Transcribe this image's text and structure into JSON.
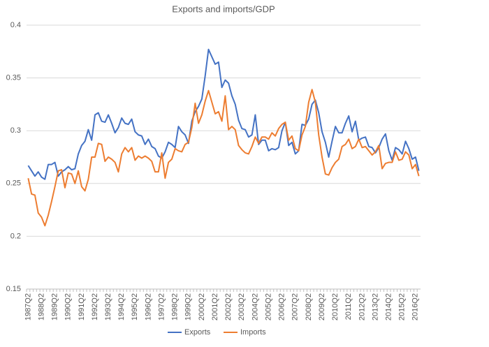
{
  "chart_data": {
    "type": "line",
    "title": "Exports and imports/GDP",
    "categories": [
      "1987Q2",
      null,
      null,
      null,
      "1988Q2",
      null,
      null,
      null,
      "1989Q2",
      null,
      null,
      null,
      "1990Q2",
      null,
      null,
      null,
      "1991Q2",
      null,
      null,
      null,
      "1992Q2",
      null,
      null,
      null,
      "1993Q2",
      null,
      null,
      null,
      "1994Q2",
      null,
      null,
      null,
      "1995Q2",
      null,
      null,
      null,
      "1996Q2",
      null,
      null,
      null,
      "1997Q2",
      null,
      null,
      null,
      "1998Q2",
      null,
      null,
      null,
      "1999Q2",
      null,
      null,
      null,
      "2000Q2",
      null,
      null,
      null,
      "2001Q2",
      null,
      null,
      null,
      "2002Q2",
      null,
      null,
      null,
      "2003Q2",
      null,
      null,
      null,
      "2004Q2",
      null,
      null,
      null,
      "2005Q2",
      null,
      null,
      null,
      "2006Q2",
      null,
      null,
      null,
      "2007Q2",
      null,
      null,
      null,
      "2008Q2",
      null,
      null,
      null,
      "2009Q2",
      null,
      null,
      null,
      "2010Q2",
      null,
      null,
      null,
      "2011Q2",
      null,
      null,
      null,
      "2012Q2",
      null,
      null,
      null,
      "2013Q2",
      null,
      null,
      null,
      "2014Q2",
      null,
      null,
      null,
      "2015Q2",
      null,
      null,
      null,
      "2016Q2",
      null
    ],
    "series": [
      {
        "name": "Exports",
        "color": "#4472c4",
        "values": [
          0.267,
          0.262,
          0.257,
          0.261,
          0.256,
          0.254,
          0.268,
          0.268,
          0.27,
          0.257,
          0.261,
          0.263,
          0.266,
          0.263,
          0.264,
          0.278,
          0.286,
          0.29,
          0.301,
          0.291,
          0.315,
          0.317,
          0.309,
          0.308,
          0.315,
          0.307,
          0.298,
          0.303,
          0.312,
          0.307,
          0.306,
          0.311,
          0.299,
          0.296,
          0.295,
          0.287,
          0.292,
          0.285,
          0.283,
          0.276,
          0.274,
          0.28,
          0.289,
          0.287,
          0.284,
          0.304,
          0.299,
          0.296,
          0.288,
          0.309,
          0.318,
          0.323,
          0.33,
          0.352,
          0.377,
          0.37,
          0.363,
          0.365,
          0.341,
          0.348,
          0.345,
          0.333,
          0.325,
          0.31,
          0.302,
          0.301,
          0.294,
          0.296,
          0.315,
          0.287,
          0.291,
          0.291,
          0.281,
          0.283,
          0.282,
          0.284,
          0.3,
          0.308,
          0.286,
          0.289,
          0.278,
          0.281,
          0.306,
          0.305,
          0.311,
          0.325,
          0.329,
          0.317,
          0.299,
          0.289,
          0.275,
          0.29,
          0.304,
          0.298,
          0.298,
          0.307,
          0.314,
          0.299,
          0.309,
          0.291,
          0.293,
          0.294,
          0.285,
          0.284,
          0.279,
          0.284,
          0.292,
          0.297,
          0.281,
          0.272,
          0.284,
          0.282,
          0.278,
          0.29,
          0.283,
          0.273,
          0.275,
          0.262
        ]
      },
      {
        "name": "Imports",
        "color": "#ed7d31",
        "values": [
          0.255,
          0.24,
          0.239,
          0.222,
          0.218,
          0.21,
          0.22,
          0.233,
          0.247,
          0.262,
          0.263,
          0.246,
          0.26,
          0.259,
          0.25,
          0.262,
          0.247,
          0.243,
          0.254,
          0.275,
          0.275,
          0.288,
          0.287,
          0.271,
          0.275,
          0.273,
          0.27,
          0.261,
          0.278,
          0.284,
          0.28,
          0.284,
          0.272,
          0.276,
          0.274,
          0.276,
          0.274,
          0.271,
          0.261,
          0.261,
          0.279,
          0.255,
          0.27,
          0.273,
          0.283,
          0.281,
          0.28,
          0.287,
          0.289,
          0.303,
          0.326,
          0.307,
          0.315,
          0.328,
          0.338,
          0.327,
          0.316,
          0.318,
          0.309,
          0.333,
          0.301,
          0.304,
          0.301,
          0.286,
          0.282,
          0.279,
          0.278,
          0.285,
          0.294,
          0.288,
          0.294,
          0.294,
          0.292,
          0.298,
          0.295,
          0.302,
          0.306,
          0.308,
          0.291,
          0.295,
          0.283,
          0.281,
          0.296,
          0.304,
          0.327,
          0.339,
          0.327,
          0.296,
          0.275,
          0.259,
          0.258,
          0.265,
          0.27,
          0.273,
          0.285,
          0.287,
          0.292,
          0.283,
          0.285,
          0.292,
          0.284,
          0.285,
          0.281,
          0.277,
          0.28,
          0.286,
          0.264,
          0.269,
          0.27,
          0.27,
          0.28,
          0.272,
          0.273,
          0.28,
          0.277,
          0.264,
          0.268,
          0.257
        ]
      }
    ],
    "ylim": [
      0.15,
      0.4
    ],
    "yticks": [
      0.15,
      0.2,
      0.25,
      0.3,
      0.35,
      0.4
    ],
    "grid": true,
    "legend": "bottom"
  }
}
